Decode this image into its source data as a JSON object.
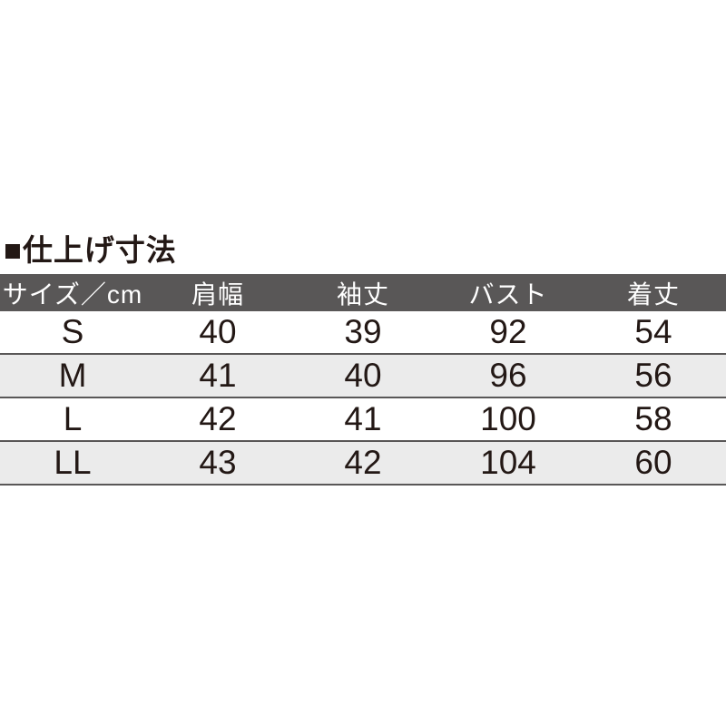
{
  "chart_data": {
    "type": "table",
    "title": "■仕上げ寸法",
    "columns": [
      "サイズ／cm",
      "肩幅",
      "袖丈",
      "バスト",
      "着丈"
    ],
    "rows": [
      [
        "S",
        40,
        39,
        92,
        54
      ],
      [
        "M",
        41,
        40,
        96,
        56
      ],
      [
        "L",
        42,
        41,
        100,
        58
      ],
      [
        "LL",
        43,
        42,
        104,
        60
      ]
    ],
    "colors": {
      "header_bg": "#595757",
      "header_text_color": "#ffffff",
      "row_bg": "#ffffff",
      "alt_row_bg": "#ebebeb",
      "border_color": "#595757",
      "text_color": "#231815"
    },
    "layout_hints": {
      "column_alignment": "center",
      "grid": "horizontal-lines-only",
      "alternating_rows": true
    }
  }
}
